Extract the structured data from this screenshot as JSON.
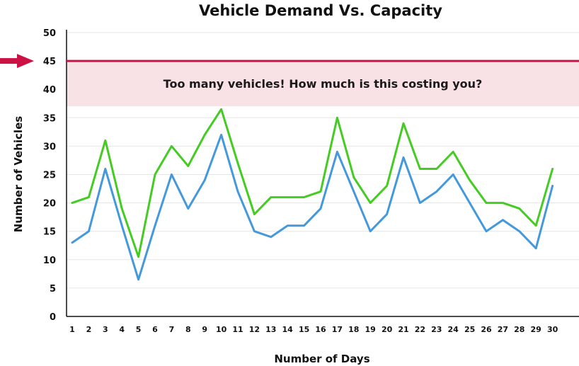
{
  "chart_data": {
    "type": "line",
    "title": "Vehicle Demand Vs. Capacity",
    "xlabel": "Number of Days",
    "ylabel": "Number of Vehicles",
    "x": [
      1,
      2,
      3,
      4,
      5,
      6,
      7,
      8,
      9,
      10,
      11,
      12,
      13,
      14,
      15,
      16,
      17,
      18,
      19,
      20,
      21,
      22,
      23,
      24,
      25,
      26,
      27,
      28,
      29,
      30
    ],
    "ylim": [
      0,
      50
    ],
    "yticks": [
      0,
      5,
      10,
      15,
      20,
      25,
      30,
      35,
      40,
      45,
      50
    ],
    "grid": true,
    "legend": "none",
    "series": [
      {
        "color": "#44cc22",
        "values": [
          20,
          21,
          31,
          19,
          10.5,
          25,
          30,
          26.5,
          32,
          36.5,
          27,
          18,
          21,
          21,
          21,
          22,
          35,
          24.5,
          20,
          23,
          34,
          26,
          26,
          29,
          24,
          20,
          20,
          19,
          16,
          26
        ]
      },
      {
        "color": "#4499dd",
        "values": [
          13,
          15,
          26,
          16,
          6.5,
          16,
          25,
          19,
          24,
          32,
          22,
          15,
          14,
          16,
          16,
          19,
          29,
          22,
          15,
          18,
          28,
          20,
          22,
          25,
          20,
          15,
          17,
          15,
          12,
          23
        ]
      }
    ],
    "capacity_line": {
      "value": 45,
      "color": "#cc1144"
    },
    "excess_band": {
      "from": 37,
      "to": 45,
      "color": "#f9e2e6"
    },
    "annotation": "Too many vehicles!  How much is this costing you?",
    "arrow_color": "#cc1144"
  }
}
